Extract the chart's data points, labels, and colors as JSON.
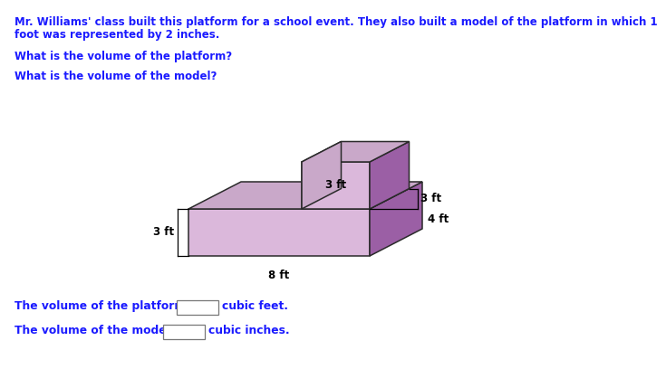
{
  "title_line1": "Mr. Williams' class built this platform for a school event. They also built a model of the platform in which 1",
  "title_line2": "foot was represented by 2 inches.",
  "q1": "What is the volume of the platform?",
  "q2": "What is the volume of the model?",
  "label_bottom_width": "8 ft",
  "label_bottom_height": "3 ft",
  "label_top_width": "3 ft",
  "label_top_depth": "3 ft",
  "label_side_height": "4 ft",
  "answer_line1": "The volume of the platform is",
  "answer_unit1": "cubic feet.",
  "answer_line2": "The volume of the model is",
  "answer_unit2": "cubic inches.",
  "face_light": "#dbb8db",
  "face_dark": "#9b5fa5",
  "face_top": "#c9a8c9",
  "edge_color": "#2a2a2a",
  "background": "#ffffff",
  "text_color": "#1a1aff"
}
